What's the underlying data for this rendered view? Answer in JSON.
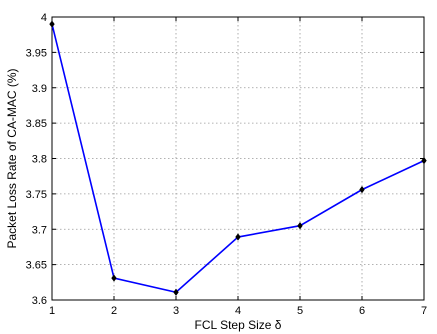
{
  "chart_data": {
    "type": "line",
    "title": "",
    "xlabel": "FCL Step Size δ",
    "ylabel": "Packet Loss Rate of CA-MAC (%)",
    "xlim": [
      1,
      7
    ],
    "ylim": [
      3.6,
      4
    ],
    "xticks": [
      "1",
      "2",
      "3",
      "4",
      "5",
      "6",
      "7"
    ],
    "yticks": [
      "3.6",
      "3.65",
      "3.7",
      "3.75",
      "3.8",
      "3.85",
      "3.9",
      "3.95",
      "4"
    ],
    "grid": true,
    "series": [
      {
        "color": "#0000ff",
        "marker": "diamond",
        "x": [
          1,
          2,
          3,
          4,
          5,
          6,
          7
        ],
        "y": [
          3.99,
          3.631,
          3.611,
          3.689,
          3.705,
          3.756,
          3.797
        ]
      }
    ]
  }
}
